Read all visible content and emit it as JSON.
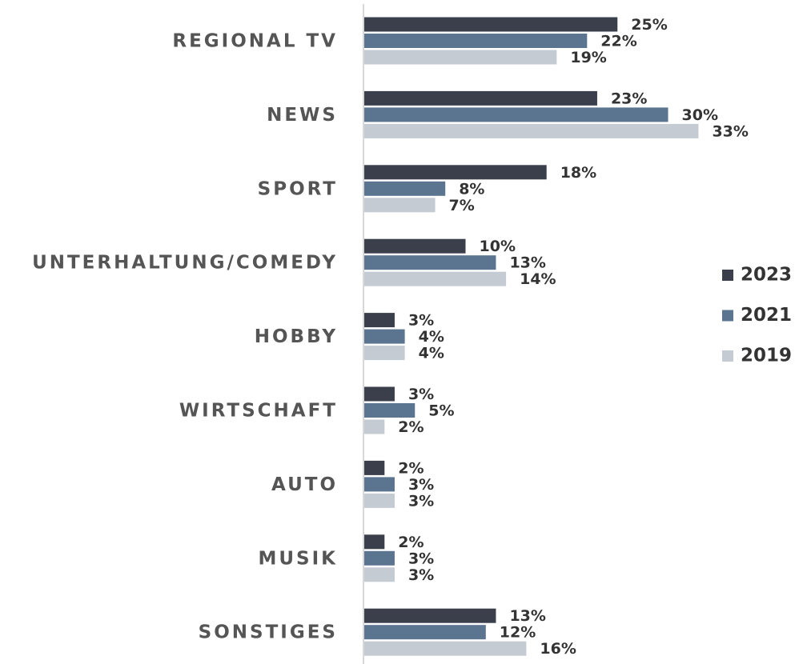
{
  "chart_data": {
    "type": "bar",
    "orientation": "horizontal",
    "categories": [
      "REGIONAL TV",
      "NEWS",
      "SPORT",
      "UNTERHALTUNG/COMEDY",
      "HOBBY",
      "WIRTSCHAFT",
      "AUTO",
      "MUSIK",
      "SONSTIGES"
    ],
    "series": [
      {
        "name": "2023",
        "color": "#3a3f4b",
        "values": [
          25,
          23,
          18,
          10,
          3,
          3,
          2,
          2,
          13
        ],
        "value_labels": [
          "25%",
          "23%",
          "18%",
          "10%",
          "3%",
          "3%",
          "2%",
          "2%",
          "13%"
        ]
      },
      {
        "name": "2021",
        "color": "#5b7490",
        "values": [
          22,
          30,
          8,
          13,
          4,
          5,
          3,
          3,
          12
        ],
        "value_labels": [
          "22%",
          "30%",
          "8%",
          "13%",
          "4%",
          "5%",
          "3%",
          "3%",
          "12%"
        ]
      },
      {
        "name": "2019",
        "color": "#c5cbd3",
        "values": [
          19,
          33,
          7,
          14,
          4,
          2,
          3,
          3,
          16
        ],
        "value_labels": [
          "19%",
          "33%",
          "7%",
          "14%",
          "4%",
          "2%",
          "3%",
          "3%",
          "16%"
        ]
      }
    ],
    "legend": "right"
  }
}
